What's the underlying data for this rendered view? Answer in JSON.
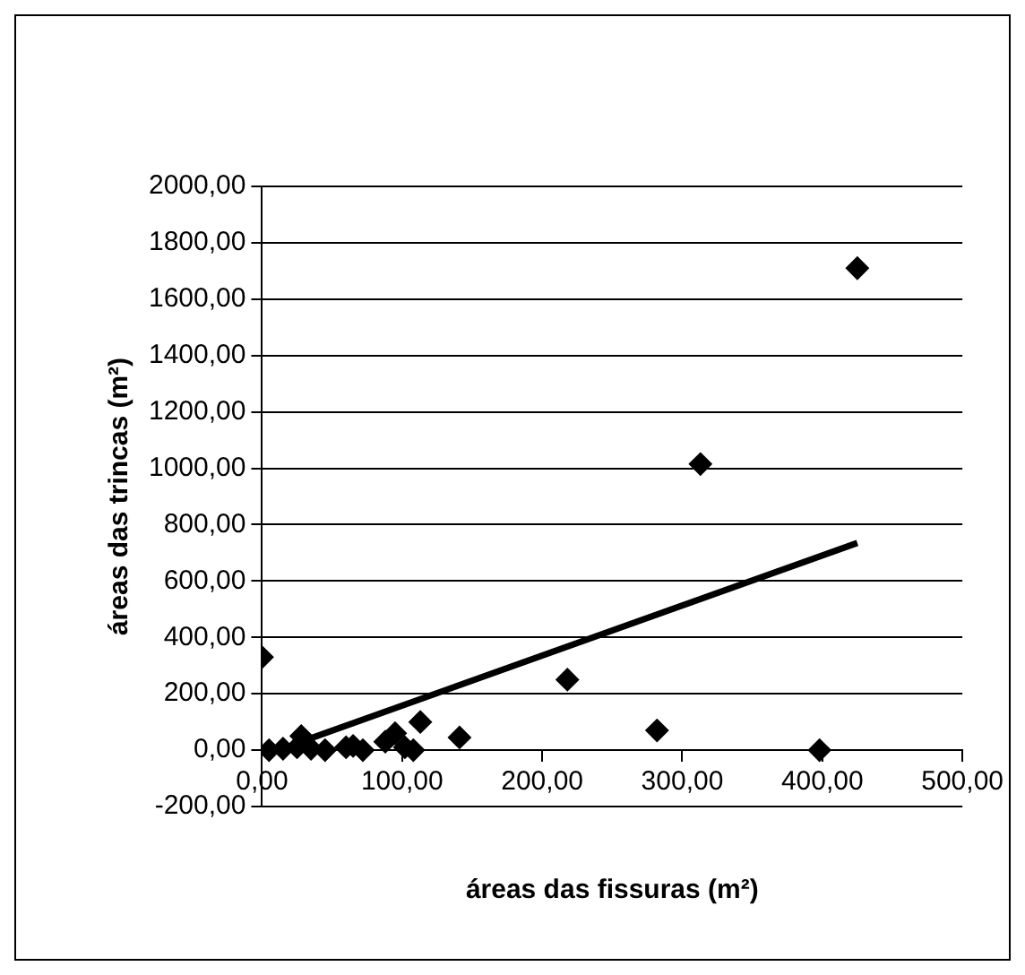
{
  "chart_data": {
    "type": "scatter",
    "xlabel": "áreas das fissuras (m²)",
    "ylabel": "áreas das trincas (m²)",
    "xlim": [
      0,
      500
    ],
    "ylim": [
      -200,
      2000
    ],
    "xticks": [
      {
        "value": 0,
        "label": "0,00"
      },
      {
        "value": 100,
        "label": "100,00"
      },
      {
        "value": 200,
        "label": "200,00"
      },
      {
        "value": 300,
        "label": "300,00"
      },
      {
        "value": 400,
        "label": "400,00"
      },
      {
        "value": 500,
        "label": "500,00"
      }
    ],
    "yticks": [
      {
        "value": -200,
        "label": "-200,00"
      },
      {
        "value": 0,
        "label": "0,00"
      },
      {
        "value": 200,
        "label": "200,00"
      },
      {
        "value": 400,
        "label": "400,00"
      },
      {
        "value": 600,
        "label": "600,00"
      },
      {
        "value": 800,
        "label": "800,00"
      },
      {
        "value": 1000,
        "label": "1000,00"
      },
      {
        "value": 1200,
        "label": "1200,00"
      },
      {
        "value": 1400,
        "label": "1400,00"
      },
      {
        "value": 1600,
        "label": "1600,00"
      },
      {
        "value": 1800,
        "label": "1800,00"
      },
      {
        "value": 2000,
        "label": "2000,00"
      }
    ],
    "grid": "y",
    "legend": false,
    "series": [
      {
        "type": "scatter",
        "marker": "diamond",
        "color": "#000000",
        "x": [
          0,
          5,
          15,
          25,
          28,
          35,
          45,
          60,
          65,
          72,
          88,
          95,
          102,
          108,
          113,
          141,
          218,
          282,
          313,
          398,
          425
        ],
        "values": [
          330,
          0,
          5,
          10,
          50,
          5,
          0,
          10,
          15,
          0,
          30,
          60,
          10,
          0,
          100,
          45,
          250,
          70,
          1015,
          0,
          1710
        ]
      },
      {
        "type": "line",
        "marker": "none",
        "color": "#000000",
        "x": [
          28,
          425
        ],
        "values": [
          30,
          735
        ]
      }
    ]
  }
}
